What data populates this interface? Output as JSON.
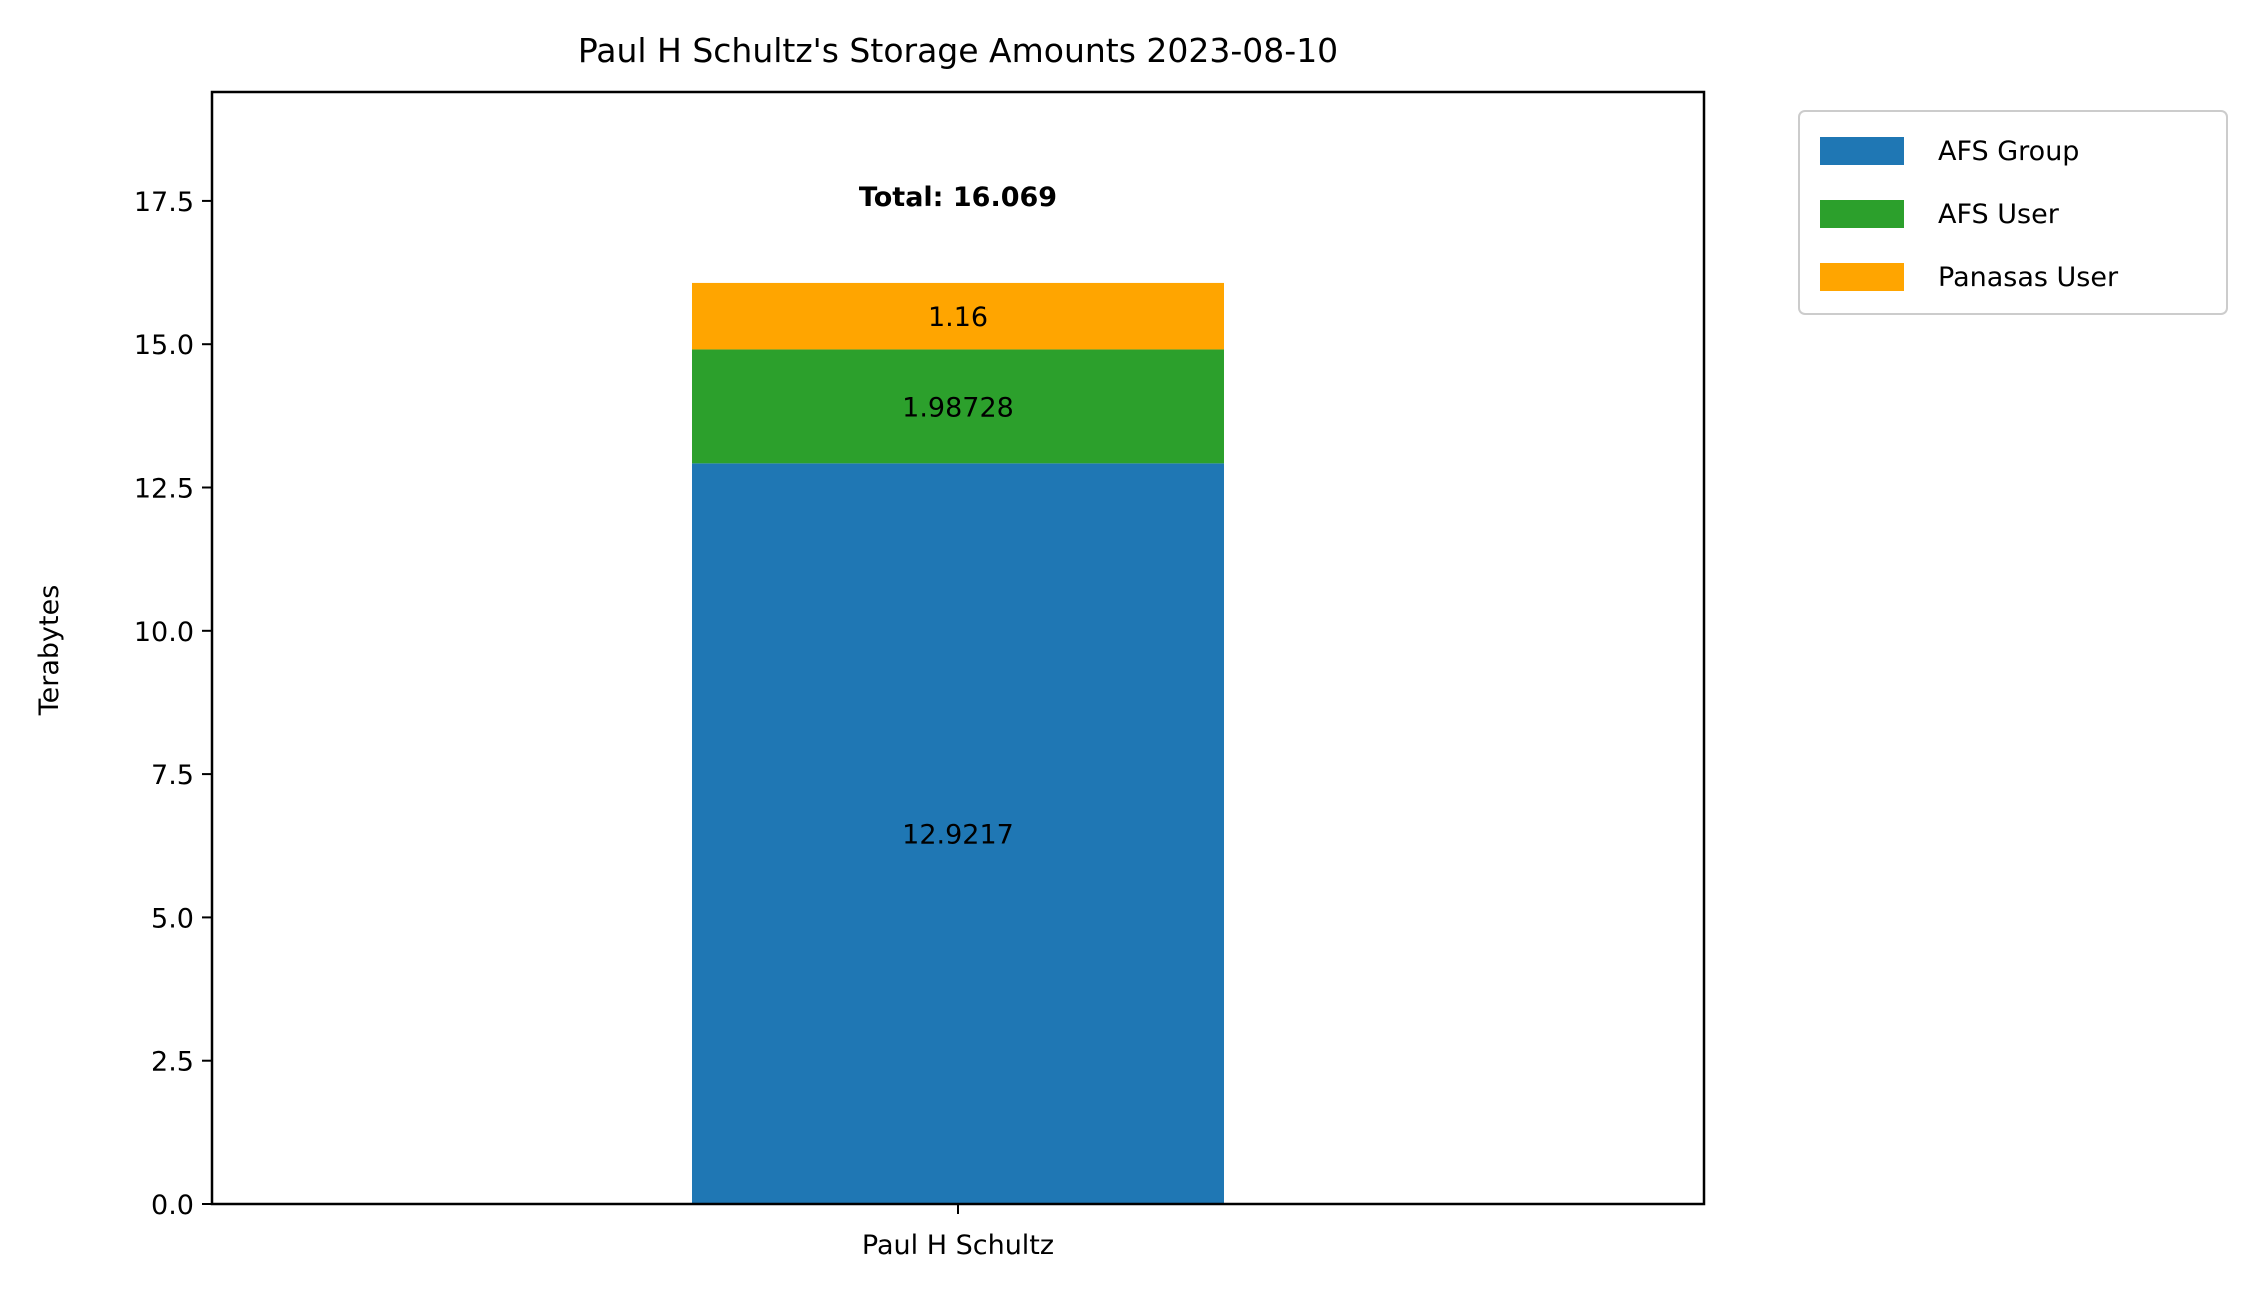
{
  "chart_data": {
    "type": "bar",
    "stacked": true,
    "title": "Paul H Schultz's Storage Amounts 2023-08-10",
    "xlabel": "",
    "ylabel": "Terabytes",
    "categories": [
      "Paul H Schultz"
    ],
    "ylim": [
      0,
      19.4
    ],
    "yticks": [
      "0.0",
      "2.5",
      "5.0",
      "7.5",
      "10.0",
      "12.5",
      "15.0",
      "17.5"
    ],
    "ytick_values": [
      0,
      2.5,
      5,
      7.5,
      10,
      12.5,
      15,
      17.5
    ],
    "series": [
      {
        "name": "AFS Group",
        "values": [
          12.9217
        ],
        "label": "12.9217",
        "color": "#1f77b4"
      },
      {
        "name": "AFS User",
        "values": [
          1.98728
        ],
        "label": "1.98728",
        "color": "#2ca02c"
      },
      {
        "name": "Panasas User",
        "values": [
          1.16
        ],
        "label": "1.16",
        "color": "#ffa500"
      }
    ],
    "total_label": "Total: 16.069",
    "total_value": 16.069,
    "legend_position": "outside-right-top",
    "grid": false
  }
}
